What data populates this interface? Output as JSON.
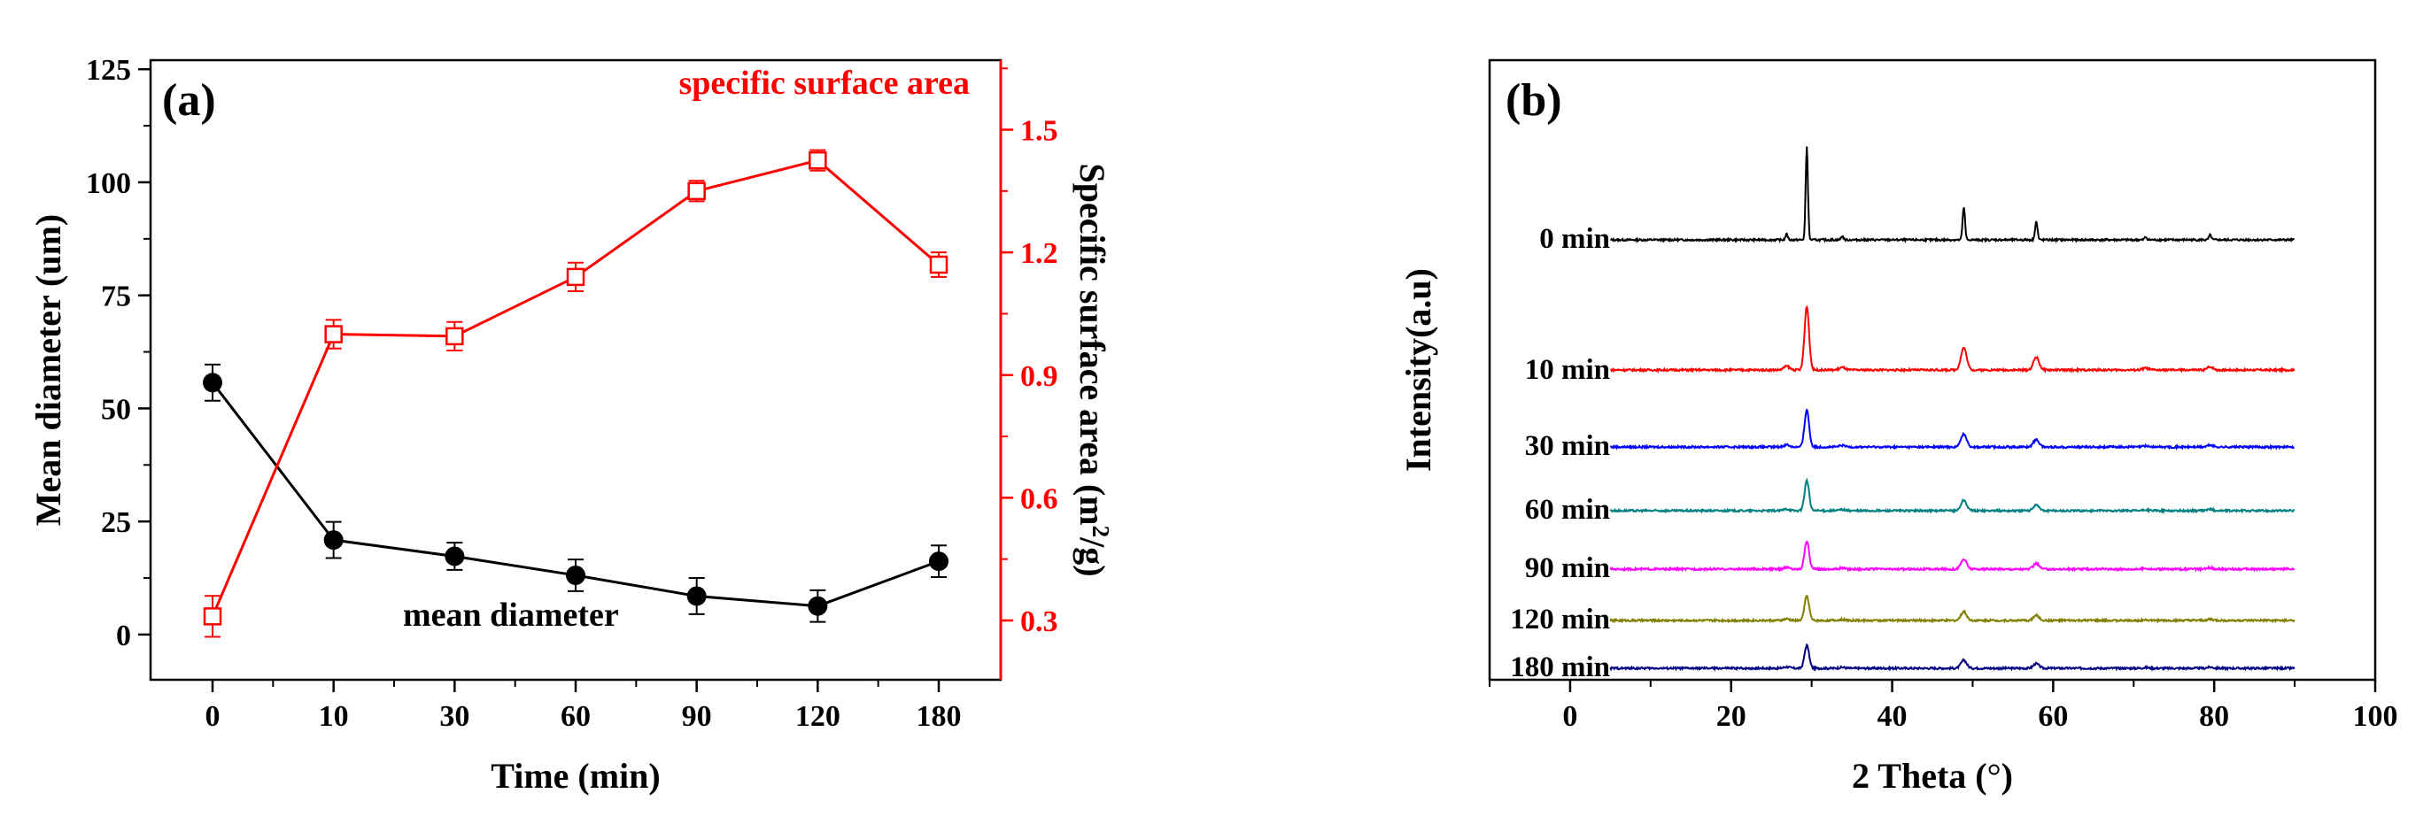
{
  "chart_data": [
    {
      "type": "line",
      "panel_label": "(a)",
      "xlabel": "Time (min)",
      "categories": [
        "0",
        "10",
        "30",
        "60",
        "90",
        "120",
        "180"
      ],
      "left_axis": {
        "label": "Mean diameter (um)",
        "ylim": [
          -10,
          127
        ],
        "ticks": [
          0,
          25,
          50,
          75,
          100,
          125
        ]
      },
      "right_axis": {
        "label_main": "Specific surface area (m",
        "label_sup": "2",
        "label_end": "/g)",
        "ylim": [
          0.155,
          1.67
        ],
        "ticks": [
          "0.3",
          "0.6",
          "0.9",
          "1.2",
          "1.5"
        ],
        "color": "#ff0000"
      },
      "series": [
        {
          "name": "mean diameter",
          "axis": "left",
          "color": "#000000",
          "marker": "filled-circle",
          "values": [
            55.7,
            20.9,
            17.3,
            13.1,
            8.5,
            6.3,
            16.2
          ],
          "errors": [
            4.0,
            4.0,
            3.0,
            3.5,
            4.0,
            3.5,
            3.5
          ]
        },
        {
          "name": "specific surface area",
          "axis": "right",
          "color": "#ff0000",
          "marker": "open-square",
          "values": [
            0.31,
            1.0,
            0.995,
            1.14,
            1.35,
            1.425,
            1.17
          ],
          "errors": [
            0.05,
            0.035,
            0.035,
            0.035,
            0.025,
            0.025,
            0.03
          ]
        }
      ]
    },
    {
      "type": "line",
      "panel_label": "(b)",
      "xlabel_main": "2 Theta (",
      "xlabel_unit": "°",
      "xlabel_end": ")",
      "ylabel": "Intensity(a.u)",
      "xlim": [
        -10,
        100
      ],
      "xticks": [
        0,
        20,
        40,
        60,
        80,
        100
      ],
      "x_range": [
        5,
        90
      ],
      "peaks": [
        {
          "position": 29.4,
          "relative_height": 1.0
        },
        {
          "position": 48.9,
          "relative_height": 0.35
        },
        {
          "position": 57.9,
          "relative_height": 0.2
        },
        {
          "position": 26.9,
          "relative_height": 0.06
        },
        {
          "position": 33.8,
          "relative_height": 0.04
        },
        {
          "position": 71.5,
          "relative_height": 0.03
        },
        {
          "position": 79.5,
          "relative_height": 0.05
        }
      ],
      "series": [
        {
          "name": "0 min",
          "color": "#000000",
          "peak_intensity": 105
        },
        {
          "name": "10 min",
          "color": "#ff0000",
          "peak_intensity": 72
        },
        {
          "name": "30 min",
          "color": "#0000ff",
          "peak_intensity": 42
        },
        {
          "name": "60 min",
          "color": "#008080",
          "peak_intensity": 34
        },
        {
          "name": "90 min",
          "color": "#ff00ff",
          "peak_intensity": 32
        },
        {
          "name": "120 min",
          "color": "#808000",
          "peak_intensity": 28
        },
        {
          "name": "180 min",
          "color": "#000080",
          "peak_intensity": 26
        }
      ]
    }
  ]
}
